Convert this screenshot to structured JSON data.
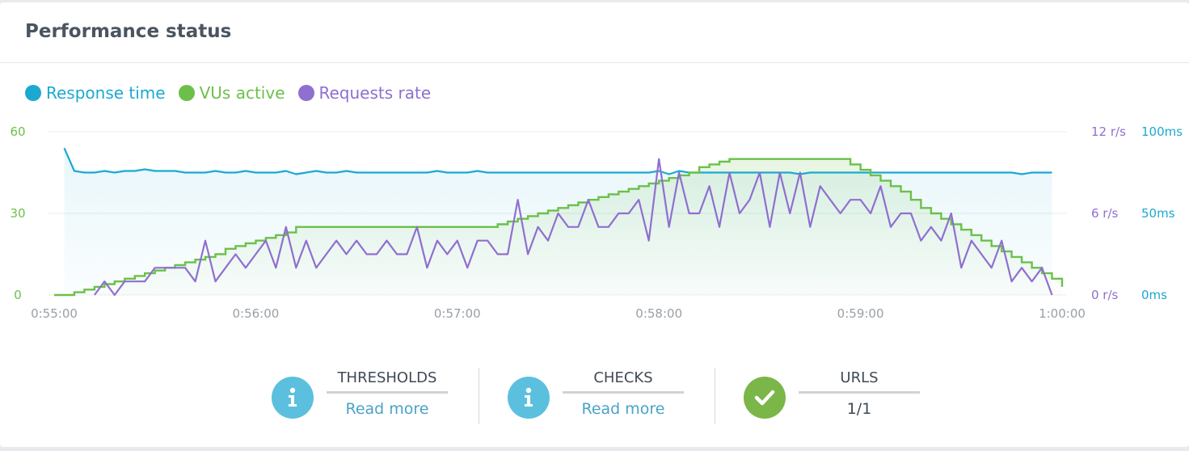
{
  "panel": {
    "title": "Performance status"
  },
  "colors": {
    "response_time": "#1ba9d1",
    "vus_active": "#6cc04a",
    "requests_rate": "#8f6fcf",
    "info_icon_bg": "#5bc0de",
    "check_icon_bg": "#7ab648",
    "link": "#4aa3c8",
    "grid": "#e9ecef",
    "tick": "#9aa0a6"
  },
  "chart_data": {
    "type": "line",
    "legend_placement": "top-left",
    "grid": true,
    "x_ticks": [
      "0:55:00",
      "0:56:00",
      "0:57:00",
      "0:58:00",
      "0:59:00",
      "1:00:00"
    ],
    "x_range_seconds": [
      0,
      300
    ],
    "axes": {
      "vus": {
        "range": [
          0,
          60
        ],
        "ticks": [
          "0",
          "30",
          "60"
        ]
      },
      "requests": {
        "range": [
          0,
          12
        ],
        "ticks": [
          "0 r/s",
          "6 r/s",
          "12 r/s"
        ]
      },
      "response": {
        "range": [
          0,
          100
        ],
        "ticks": [
          "0ms",
          "50ms",
          "100ms"
        ]
      }
    },
    "series": [
      {
        "name": "Response time",
        "axis": "response",
        "unit": "ms",
        "x": [
          3,
          6,
          9,
          12,
          15,
          18,
          21,
          24,
          27,
          30,
          33,
          36,
          39,
          42,
          45,
          48,
          51,
          54,
          57,
          60,
          63,
          66,
          69,
          72,
          75,
          78,
          81,
          84,
          87,
          90,
          93,
          96,
          99,
          102,
          105,
          108,
          111,
          114,
          117,
          120,
          123,
          126,
          129,
          132,
          135,
          138,
          141,
          144,
          147,
          150,
          153,
          156,
          159,
          162,
          165,
          168,
          171,
          174,
          177,
          180,
          183,
          186,
          189,
          192,
          195,
          198,
          201,
          204,
          207,
          210,
          213,
          216,
          219,
          222,
          225,
          228,
          231,
          234,
          237,
          240,
          243,
          246,
          249,
          252,
          255,
          258,
          261,
          264,
          267,
          270,
          273,
          276,
          279,
          282,
          285,
          288,
          291,
          294,
          297
        ],
        "values": [
          90,
          76,
          75,
          75,
          76,
          75,
          76,
          76,
          77,
          76,
          76,
          76,
          75,
          75,
          75,
          76,
          75,
          75,
          76,
          75,
          75,
          75,
          76,
          74,
          75,
          76,
          75,
          75,
          76,
          75,
          75,
          75,
          75,
          75,
          75,
          75,
          75,
          76,
          75,
          75,
          75,
          76,
          75,
          75,
          75,
          75,
          75,
          75,
          75,
          75,
          75,
          75,
          75,
          75,
          75,
          75,
          75,
          75,
          75,
          76,
          74,
          76,
          75,
          75,
          75,
          75,
          75,
          75,
          75,
          75,
          75,
          75,
          75,
          74,
          75,
          75,
          75,
          75,
          75,
          75,
          75,
          75,
          75,
          75,
          75,
          75,
          75,
          75,
          75,
          75,
          75,
          75,
          75,
          75,
          75,
          74,
          75,
          75,
          75
        ]
      },
      {
        "name": "VUs active",
        "axis": "vus",
        "unit": "VUs",
        "x": [
          0,
          6,
          9,
          12,
          15,
          18,
          21,
          24,
          27,
          30,
          33,
          36,
          39,
          42,
          45,
          48,
          51,
          54,
          57,
          60,
          63,
          66,
          69,
          72,
          129,
          132,
          135,
          138,
          141,
          144,
          147,
          150,
          153,
          156,
          159,
          162,
          165,
          168,
          171,
          174,
          177,
          180,
          183,
          186,
          189,
          192,
          195,
          198,
          201,
          204,
          207,
          210,
          213,
          216,
          219,
          222,
          225,
          228,
          231,
          234,
          237,
          240,
          243,
          246,
          249,
          252,
          255,
          258,
          261,
          264,
          267,
          270,
          273,
          276,
          279,
          282,
          285,
          288,
          291,
          294,
          297,
          300
        ],
        "values": [
          0,
          1,
          2,
          3,
          4,
          5,
          6,
          7,
          8,
          9,
          10,
          11,
          12,
          13,
          14,
          15,
          17,
          18,
          19,
          20,
          21,
          22,
          23,
          25,
          25,
          26,
          27,
          28,
          29,
          30,
          31,
          32,
          33,
          34,
          35,
          36,
          37,
          38,
          39,
          40,
          41,
          42,
          43,
          44,
          45,
          47,
          48,
          49,
          50,
          50,
          50,
          50,
          50,
          50,
          50,
          50,
          50,
          50,
          50,
          50,
          48,
          46,
          44,
          42,
          40,
          38,
          35,
          32,
          30,
          28,
          26,
          24,
          22,
          20,
          18,
          16,
          14,
          12,
          10,
          8,
          6,
          3
        ]
      },
      {
        "name": "Requests rate",
        "axis": "requests",
        "unit": "r/s",
        "x": [
          12,
          15,
          18,
          21,
          24,
          27,
          30,
          33,
          36,
          39,
          42,
          45,
          48,
          51,
          54,
          57,
          60,
          63,
          66,
          69,
          72,
          75,
          78,
          81,
          84,
          87,
          90,
          93,
          96,
          99,
          102,
          105,
          108,
          111,
          114,
          117,
          120,
          123,
          126,
          129,
          132,
          135,
          138,
          141,
          144,
          147,
          150,
          153,
          156,
          159,
          162,
          165,
          168,
          171,
          174,
          177,
          180,
          183,
          186,
          189,
          192,
          195,
          198,
          201,
          204,
          207,
          210,
          213,
          216,
          219,
          222,
          225,
          228,
          231,
          234,
          237,
          240,
          243,
          246,
          249,
          252,
          255,
          258,
          261,
          264,
          267,
          270,
          273,
          276,
          279,
          282,
          285,
          288,
          291,
          294,
          297
        ],
        "values": [
          0,
          1,
          0,
          1,
          1,
          1,
          2,
          2,
          2,
          2,
          1,
          4,
          1,
          2,
          3,
          2,
          3,
          4,
          2,
          5,
          2,
          4,
          2,
          3,
          4,
          3,
          4,
          3,
          3,
          4,
          3,
          3,
          5,
          2,
          4,
          3,
          4,
          2,
          4,
          4,
          3,
          3,
          7,
          3,
          5,
          4,
          6,
          5,
          5,
          7,
          5,
          5,
          6,
          6,
          7,
          4,
          10,
          5,
          9,
          6,
          6,
          8,
          5,
          9,
          6,
          7,
          9,
          5,
          9,
          6,
          9,
          5,
          8,
          7,
          6,
          7,
          7,
          6,
          8,
          5,
          6,
          6,
          4,
          5,
          4,
          6,
          2,
          4,
          3,
          2,
          4,
          1,
          2,
          1,
          2,
          0
        ]
      }
    ]
  },
  "summary": {
    "thresholds": {
      "label": "THRESHOLDS",
      "value": "Read more",
      "icon": "info-icon"
    },
    "checks": {
      "label": "CHECKS",
      "value": "Read more",
      "icon": "info-icon"
    },
    "urls": {
      "label": "URLS",
      "value": "1/1",
      "icon": "check-icon"
    }
  }
}
